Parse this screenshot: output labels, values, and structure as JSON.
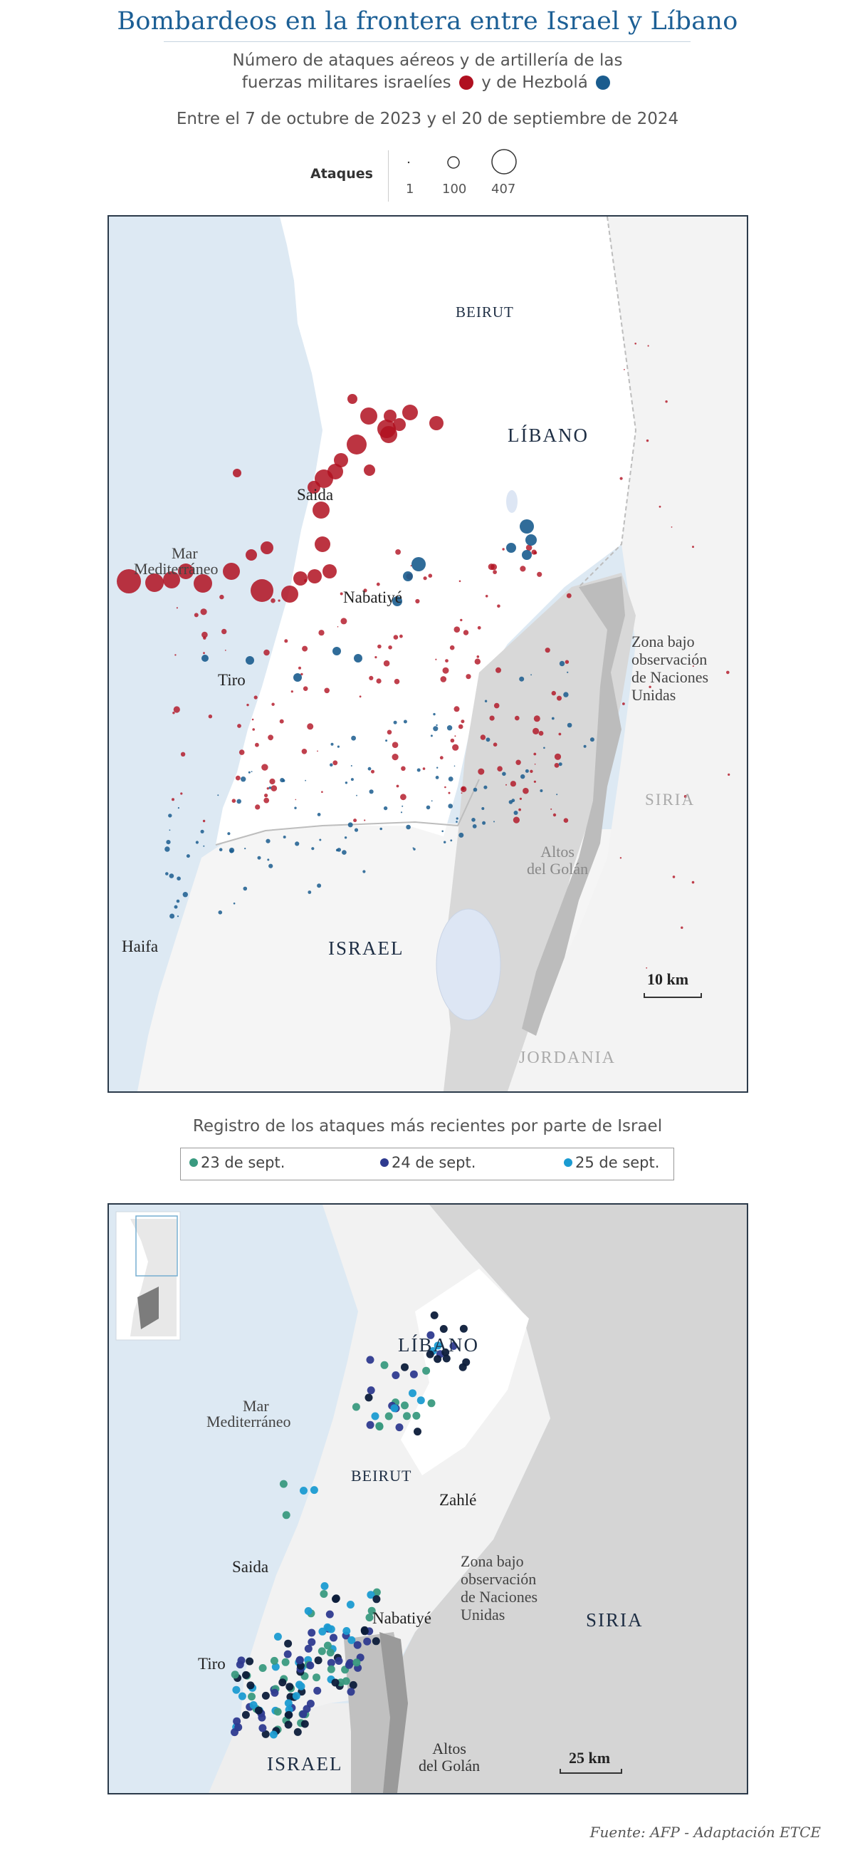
{
  "title": "Bombardeos en la frontera entre Israel y Líbano",
  "subtitle_line1": "Número de ataques aéreos y de artillería de las",
  "subtitle_line2_a": "fuerzas militares israelíes",
  "subtitle_line2_b": "y de Hezbolá",
  "date_range": "Entre el 7 de octubre de 2023 y el 20 de septiembre de 2024",
  "colors": {
    "israel": "#b01020",
    "hezbollah": "#1a5c8e",
    "sea": "#dde9f3",
    "land": "#f7f7f7",
    "lebanon_land": "#ffffff",
    "golan": "#d6d6d6",
    "buffer": "#b9b9b9",
    "title": "#1c5f95",
    "sept23": "#3a9a80",
    "sept24": "#2e3a8f",
    "sept25": "#1b9bd1",
    "dark_point": "#0c1c3a"
  },
  "size_legend": {
    "label": "Ataques",
    "values": [
      "1",
      "100",
      "407"
    ]
  },
  "map1": {
    "labels": {
      "beirut": "BEIRUT",
      "libano": "LÍBANO",
      "saida": "Saida",
      "mar1": "Mar",
      "mar2": "Mediterráneo",
      "nabatiye": "Nabatiyé",
      "tiro": "Tiro",
      "zona1": "Zona bajo",
      "zona2": "observación",
      "zona3": "de Naciones",
      "zona4": "Unidas",
      "siria": "SIRIA",
      "altos1": "Altos",
      "altos2": "del Golán",
      "haifa": "Haifa",
      "israel": "ISRAEL",
      "jordania": "JORDANIA",
      "scale": "10 km"
    }
  },
  "recent_title": "Registro de los ataques más recientes por parte de Israel",
  "date_legend": [
    {
      "label": "23 de sept.",
      "color": "#3a9a80"
    },
    {
      "label": "24 de sept.",
      "color": "#2e3a8f"
    },
    {
      "label": "25 de sept.",
      "color": "#1b9bd1"
    }
  ],
  "map2": {
    "labels": {
      "libano": "LÍBANO",
      "mar1": "Mar",
      "mar2": "Mediterráneo",
      "beirut": "BEIRUT",
      "zahle": "Zahlé",
      "saida": "Saida",
      "zona1": "Zona bajo",
      "zona2": "observación",
      "zona3": "de Naciones",
      "zona4": "Unidas",
      "nabatiye": "Nabatiyé",
      "siria": "SIRIA",
      "tiro": "Tiro",
      "israel": "ISRAEL",
      "altos1": "Altos",
      "altos2": "del Golán",
      "scale": "25 km"
    }
  },
  "source": "Fuente: AFP - Adaptación ETCE"
}
